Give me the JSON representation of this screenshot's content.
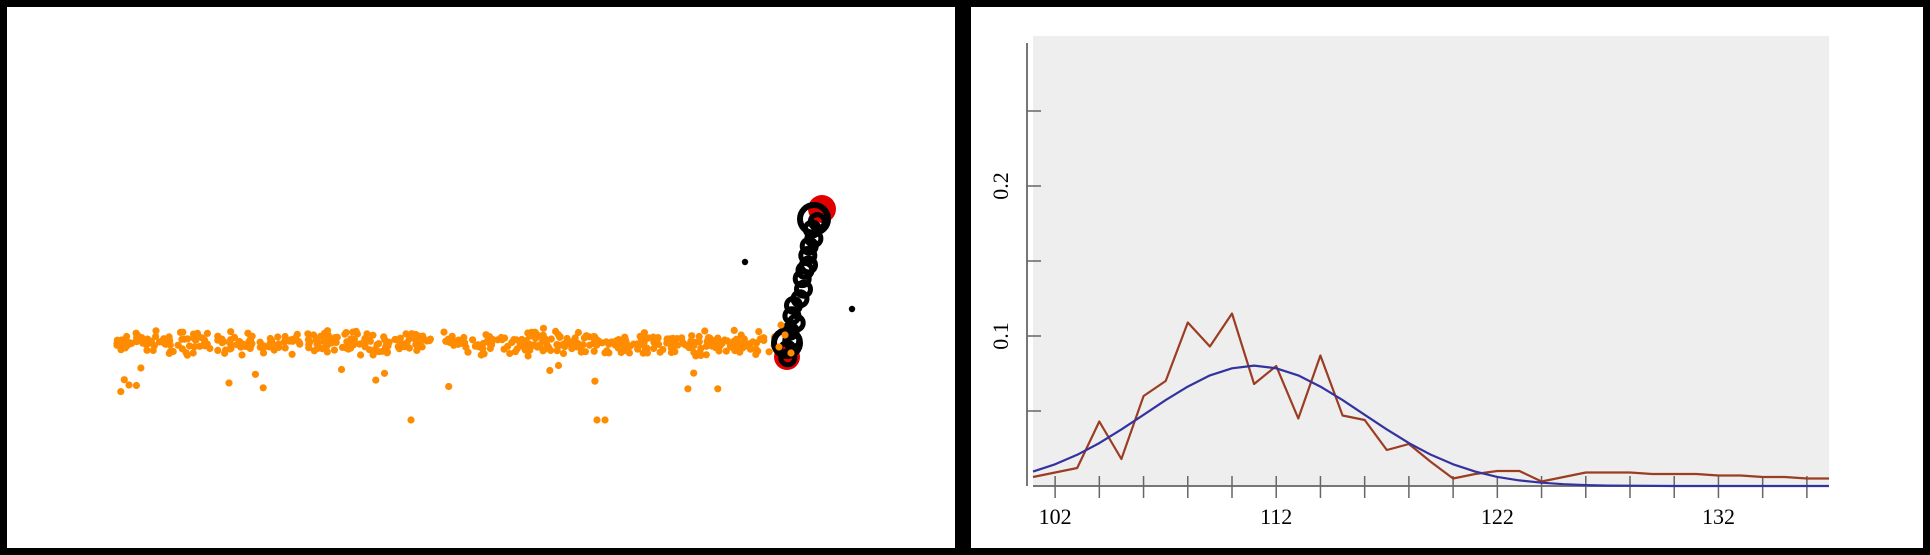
{
  "chart_data": [
    {
      "type": "scatter",
      "title": "",
      "colors": {
        "points": "#ff8c00",
        "trail": "#000000",
        "endpoints": "#e00000",
        "background": "#ffffff"
      },
      "points_description": "orange cloud of points spanning most of the width around a common level, with a few outliers below",
      "point_count_estimate": 520,
      "grid": false,
      "axes": false
    },
    {
      "type": "line",
      "title": "",
      "xlabel": "",
      "ylabel": "",
      "xlim": [
        101,
        137
      ],
      "ylim": [
        0,
        0.3
      ],
      "x_tick_labels": [
        "102",
        "112",
        "122",
        "132"
      ],
      "y_tick_labels": [
        "0.1",
        "0.2"
      ],
      "y_minor_ticks": [
        0.05,
        0.1,
        0.15,
        0.2,
        0.25
      ],
      "plot_background": "#eeeeee",
      "grid": false,
      "series": [
        {
          "type": "line",
          "color": "#9b3d22",
          "x": [
            101,
            102,
            103,
            104,
            105,
            106,
            107,
            108,
            109,
            110,
            111,
            112,
            113,
            114,
            115,
            116,
            117,
            118,
            119,
            120,
            121,
            122,
            123,
            124,
            125,
            126,
            127,
            128,
            129,
            130,
            131,
            132,
            133,
            134,
            135,
            136,
            137
          ],
          "y": [
            0.006,
            0.009,
            0.012,
            0.043,
            0.018,
            0.06,
            0.07,
            0.109,
            0.093,
            0.115,
            0.068,
            0.08,
            0.045,
            0.087,
            0.047,
            0.044,
            0.024,
            0.028,
            0.016,
            0.005,
            0.008,
            0.01,
            0.01,
            0.003,
            0.006,
            0.009,
            0.009,
            0.009,
            0.008,
            0.008,
            0.008,
            0.007,
            0.007,
            0.006,
            0.006,
            0.005,
            0.005
          ]
        },
        {
          "type": "line",
          "color": "#3333a0",
          "curve": "gaussian fit",
          "x": [
            101,
            102,
            103,
            104,
            105,
            106,
            107,
            108,
            109,
            110,
            111,
            112,
            113,
            114,
            115,
            116,
            117,
            118,
            119,
            120,
            121,
            122,
            123,
            124,
            125,
            126,
            127,
            128,
            129,
            130,
            131,
            132,
            133,
            134,
            135,
            136,
            137
          ],
          "y": [
            0.0096,
            0.0145,
            0.0208,
            0.0286,
            0.0377,
            0.0475,
            0.0573,
            0.0663,
            0.0737,
            0.0785,
            0.0803,
            0.0785,
            0.0737,
            0.0663,
            0.0573,
            0.0475,
            0.0377,
            0.0286,
            0.0208,
            0.0145,
            0.0096,
            0.0061,
            0.0037,
            0.0022,
            0.0012,
            0.0006,
            0.0003,
            0.0002,
            0.0001,
            0.0,
            0.0,
            0.0,
            0.0,
            0.0,
            0.0,
            0.0,
            0.0
          ]
        }
      ]
    }
  ]
}
